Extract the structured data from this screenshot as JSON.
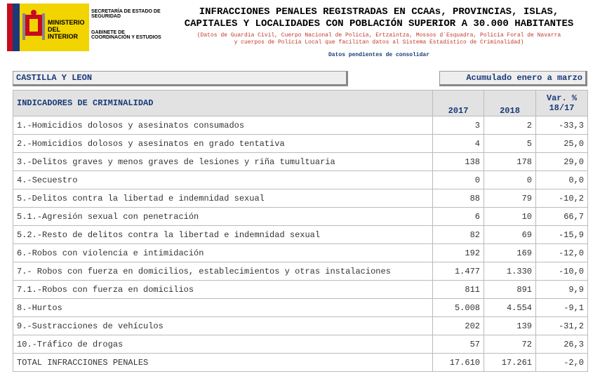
{
  "header": {
    "logo": {
      "ministry": "MINISTERIO DEL INTERIOR",
      "secretariat": "SECRETARÍA DE ESTADO DE SEGURIDAD",
      "office": "GABINETE DE COORDINACIÓN Y ESTUDIOS"
    },
    "title_line1": "INFRACCIONES PENALES REGISTRADAS EN CCAAs, PROVINCIAS, ISLAS,",
    "title_line2": "CAPITALES Y LOCALIDADES CON POBLACIÓN SUPERIOR A 30.000 HABITANTES",
    "note_line1": "(Datos de Guardia Civil, Cuerpo Nacional de Policía, Ertzaintza, Mossos d´Esquadra, Policía Foral de Navarra",
    "note_line2": "y cuerpos de Policía Local que facilitan datos al Sistema Estadístico de Criminalidad)",
    "pending": "Datos pendientes de consolidar"
  },
  "region": "CASTILLA Y LEON",
  "period": "Acumulado enero a marzo",
  "table": {
    "columns": [
      "INDICADORES DE CRIMINALIDAD",
      "2017",
      "2018",
      "Var. % 18/17"
    ],
    "rows": [
      [
        "1.-Homicidios dolosos y asesinatos consumados",
        "3",
        "2",
        "-33,3"
      ],
      [
        "2.-Homicidios dolosos y asesinatos en grado tentativa",
        "4",
        "5",
        "25,0"
      ],
      [
        "3.-Delitos graves y menos graves de lesiones y riña tumultuaria",
        "138",
        "178",
        "29,0"
      ],
      [
        "4.-Secuestro",
        "0",
        "0",
        "0,0"
      ],
      [
        "5.-Delitos contra la libertad e indemnidad sexual",
        "88",
        "79",
        "-10,2"
      ],
      [
        "5.1.-Agresión sexual con penetración",
        "6",
        "10",
        "66,7"
      ],
      [
        "5.2.-Resto de delitos contra la libertad e indemnidad sexual",
        "82",
        "69",
        "-15,9"
      ],
      [
        "6.-Robos con violencia e intimidación",
        "192",
        "169",
        "-12,0"
      ],
      [
        "7.- Robos con fuerza en domicilios, establecimientos y otras instalaciones",
        "1.477",
        "1.330",
        "-10,0"
      ],
      [
        "7.1.-Robos con fuerza en domicilios",
        "811",
        "891",
        "9,9"
      ],
      [
        "8.-Hurtos",
        "5.008",
        "4.554",
        "-9,1"
      ],
      [
        "9.-Sustracciones de vehículos",
        "202",
        "139",
        "-31,2"
      ],
      [
        "10.-Tráfico de drogas",
        "57",
        "72",
        "26,3"
      ],
      [
        "TOTAL INFRACCIONES PENALES",
        "17.610",
        "17.261",
        "-2,0"
      ]
    ]
  }
}
